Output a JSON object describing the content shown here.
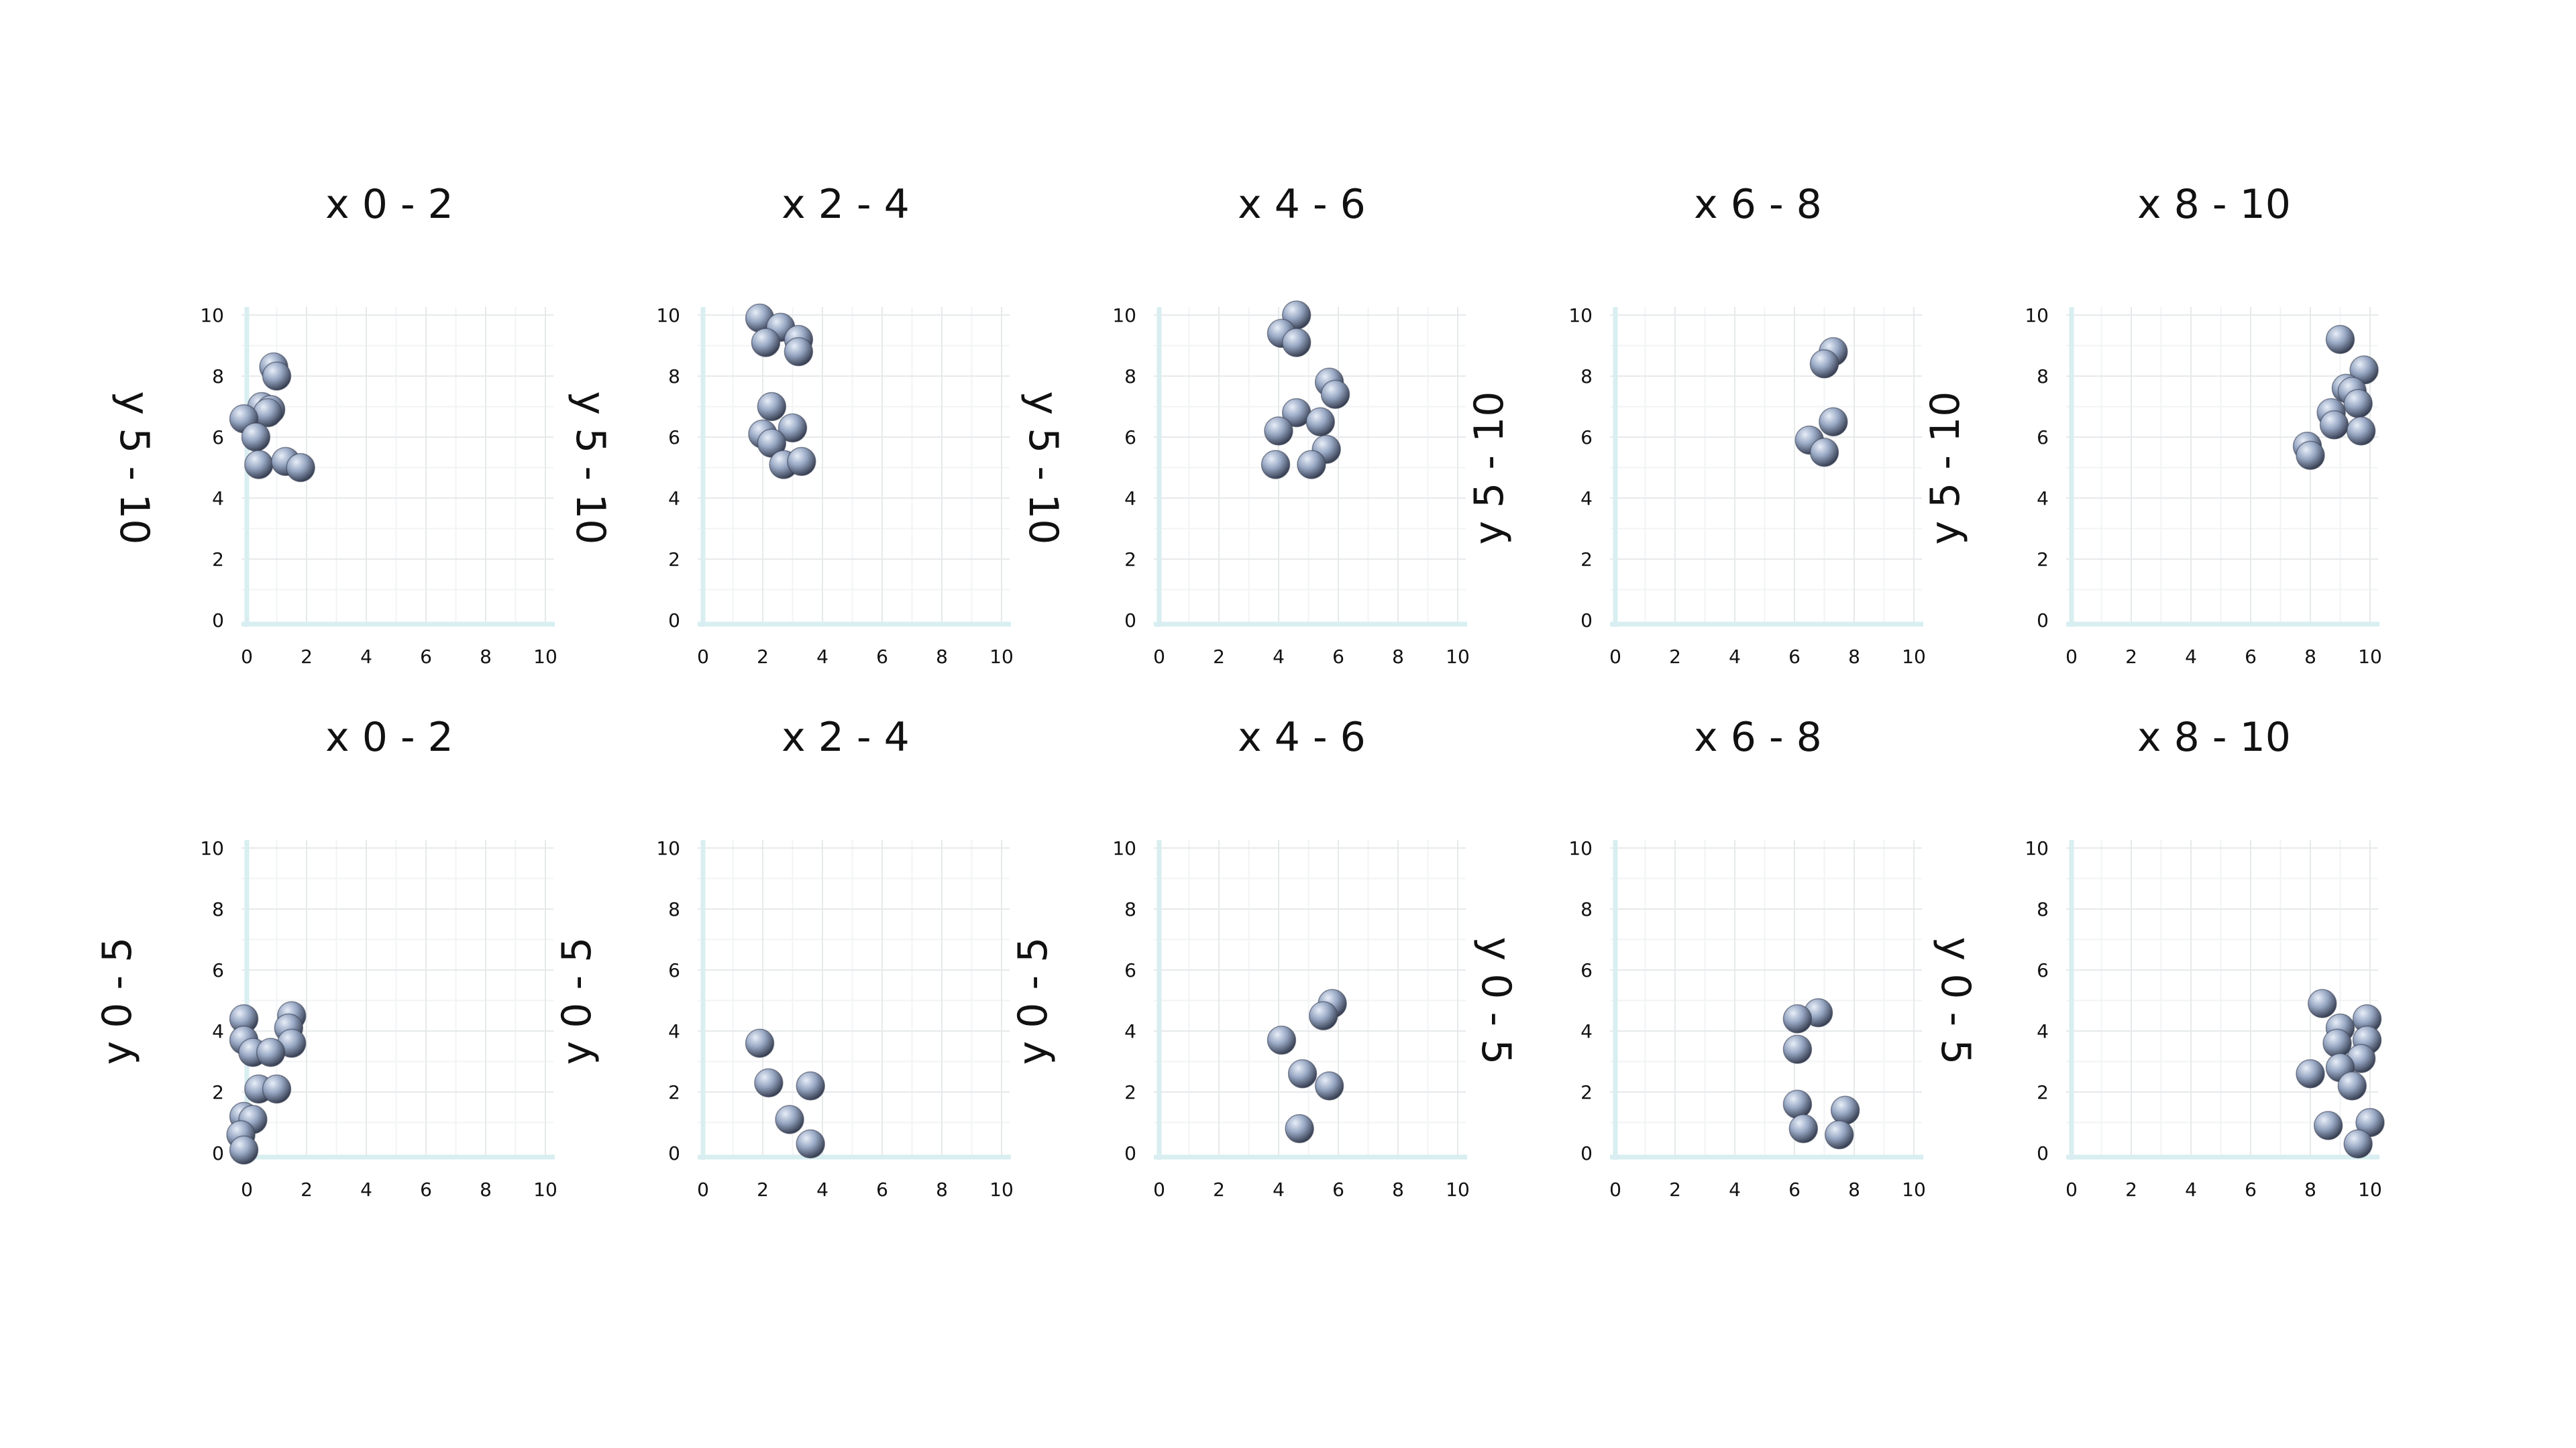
{
  "chart_data": [
    {
      "type": "scatter",
      "title": "x 0 - 2",
      "ylabel": "y 5 - 10",
      "xlim": [
        0,
        10
      ],
      "ylim": [
        0,
        10
      ],
      "xticks": [
        "0",
        "2",
        "4",
        "6",
        "8",
        "10"
      ],
      "yticks": [
        "0",
        "2",
        "4",
        "6",
        "8",
        "10"
      ],
      "points": [
        [
          0.9,
          8.3
        ],
        [
          1.0,
          8.0
        ],
        [
          0.5,
          7.0
        ],
        [
          0.8,
          6.9
        ],
        [
          0.7,
          6.8
        ],
        [
          -0.1,
          6.6
        ],
        [
          0.3,
          6.0
        ],
        [
          0.4,
          5.1
        ],
        [
          1.3,
          5.2
        ],
        [
          1.8,
          5.0
        ]
      ]
    },
    {
      "type": "scatter",
      "title": "x 2 - 4",
      "ylabel": "y 5 - 10",
      "xlim": [
        0,
        10
      ],
      "ylim": [
        0,
        10
      ],
      "xticks": [
        "0",
        "2",
        "4",
        "6",
        "8",
        "10"
      ],
      "yticks": [
        "0",
        "2",
        "4",
        "6",
        "8",
        "10"
      ],
      "points": [
        [
          1.9,
          9.9
        ],
        [
          2.6,
          9.6
        ],
        [
          3.2,
          9.2
        ],
        [
          2.1,
          9.1
        ],
        [
          3.2,
          8.8
        ],
        [
          2.3,
          7.0
        ],
        [
          3.0,
          6.3
        ],
        [
          2.0,
          6.1
        ],
        [
          2.3,
          5.8
        ],
        [
          2.7,
          5.1
        ],
        [
          3.3,
          5.2
        ]
      ]
    },
    {
      "type": "scatter",
      "title": "x 4 - 6",
      "ylabel": "y 5 - 10",
      "xlim": [
        0,
        10
      ],
      "ylim": [
        0,
        10
      ],
      "xticks": [
        "0",
        "2",
        "4",
        "6",
        "8",
        "10"
      ],
      "yticks": [
        "0",
        "2",
        "4",
        "6",
        "8",
        "10"
      ],
      "points": [
        [
          4.6,
          10.0
        ],
        [
          4.1,
          9.4
        ],
        [
          4.6,
          9.1
        ],
        [
          5.7,
          7.8
        ],
        [
          5.9,
          7.4
        ],
        [
          4.6,
          6.8
        ],
        [
          5.4,
          6.5
        ],
        [
          4.0,
          6.2
        ],
        [
          5.6,
          5.6
        ],
        [
          3.9,
          5.1
        ],
        [
          5.1,
          5.1
        ]
      ]
    },
    {
      "type": "scatter",
      "title": "x 6 - 8",
      "ylabel": "y 5 - 10",
      "xlim": [
        0,
        10
      ],
      "ylim": [
        0,
        10
      ],
      "xticks": [
        "0",
        "2",
        "4",
        "6",
        "8",
        "10"
      ],
      "yticks": [
        "0",
        "2",
        "4",
        "6",
        "8",
        "10"
      ],
      "points": [
        [
          7.3,
          8.8
        ],
        [
          7.0,
          8.4
        ],
        [
          7.3,
          6.5
        ],
        [
          6.5,
          5.9
        ],
        [
          7.0,
          5.5
        ]
      ]
    },
    {
      "type": "scatter",
      "title": "x 8 - 10",
      "ylabel": "y 5 - 10",
      "xlim": [
        0,
        10
      ],
      "ylim": [
        0,
        10
      ],
      "xticks": [
        "0",
        "2",
        "4",
        "6",
        "8",
        "10"
      ],
      "yticks": [
        "0",
        "2",
        "4",
        "6",
        "8",
        "10"
      ],
      "points": [
        [
          9.0,
          9.2
        ],
        [
          9.8,
          8.2
        ],
        [
          9.2,
          7.6
        ],
        [
          9.4,
          7.5
        ],
        [
          9.6,
          7.1
        ],
        [
          8.7,
          6.8
        ],
        [
          8.8,
          6.4
        ],
        [
          9.7,
          6.2
        ],
        [
          7.9,
          5.7
        ],
        [
          8.0,
          5.4
        ]
      ]
    },
    {
      "type": "scatter",
      "title": "x 0 - 2",
      "ylabel": "y 0 - 5",
      "xlim": [
        0,
        10
      ],
      "ylim": [
        0,
        10
      ],
      "xticks": [
        "0",
        "2",
        "4",
        "6",
        "8",
        "10"
      ],
      "yticks": [
        "0",
        "2",
        "4",
        "6",
        "8",
        "10"
      ],
      "points": [
        [
          1.5,
          4.5
        ],
        [
          -0.1,
          4.4
        ],
        [
          1.4,
          4.1
        ],
        [
          -0.1,
          3.7
        ],
        [
          1.5,
          3.6
        ],
        [
          0.2,
          3.3
        ],
        [
          0.8,
          3.3
        ],
        [
          0.4,
          2.1
        ],
        [
          1.0,
          2.1
        ],
        [
          -0.1,
          1.2
        ],
        [
          0.2,
          1.1
        ],
        [
          -0.2,
          0.6
        ],
        [
          -0.1,
          0.1
        ]
      ]
    },
    {
      "type": "scatter",
      "title": "x 2 - 4",
      "ylabel": "y 0 - 5",
      "xlim": [
        0,
        10
      ],
      "ylim": [
        0,
        10
      ],
      "xticks": [
        "0",
        "2",
        "4",
        "6",
        "8",
        "10"
      ],
      "yticks": [
        "0",
        "2",
        "4",
        "6",
        "8",
        "10"
      ],
      "points": [
        [
          1.9,
          3.6
        ],
        [
          3.6,
          2.2
        ],
        [
          2.2,
          2.3
        ],
        [
          2.9,
          1.1
        ],
        [
          3.6,
          0.3
        ]
      ]
    },
    {
      "type": "scatter",
      "title": "x 4 - 6",
      "ylabel": "y 0 - 5",
      "xlim": [
        0,
        10
      ],
      "ylim": [
        0,
        10
      ],
      "xticks": [
        "0",
        "2",
        "4",
        "6",
        "8",
        "10"
      ],
      "yticks": [
        "0",
        "2",
        "4",
        "6",
        "8",
        "10"
      ],
      "points": [
        [
          5.8,
          4.9
        ],
        [
          5.5,
          4.5
        ],
        [
          4.1,
          3.7
        ],
        [
          4.8,
          2.6
        ],
        [
          5.7,
          2.2
        ],
        [
          4.7,
          0.8
        ]
      ]
    },
    {
      "type": "scatter",
      "title": "x 6 - 8",
      "ylabel": "y 0 - 5",
      "xlim": [
        0,
        10
      ],
      "ylim": [
        0,
        10
      ],
      "xticks": [
        "0",
        "2",
        "4",
        "6",
        "8",
        "10"
      ],
      "yticks": [
        "0",
        "2",
        "4",
        "6",
        "8",
        "10"
      ],
      "points": [
        [
          6.8,
          4.6
        ],
        [
          6.1,
          4.4
        ],
        [
          6.1,
          3.4
        ],
        [
          6.1,
          1.6
        ],
        [
          7.7,
          1.4
        ],
        [
          6.3,
          0.8
        ],
        [
          7.5,
          0.6
        ]
      ]
    },
    {
      "type": "scatter",
      "title": "x 8 - 10",
      "ylabel": "y 0 - 5",
      "xlim": [
        0,
        10
      ],
      "ylim": [
        0,
        10
      ],
      "xticks": [
        "0",
        "2",
        "4",
        "6",
        "8",
        "10"
      ],
      "yticks": [
        "0",
        "2",
        "4",
        "6",
        "8",
        "10"
      ],
      "points": [
        [
          8.4,
          4.9
        ],
        [
          9.0,
          4.1
        ],
        [
          9.9,
          4.4
        ],
        [
          8.9,
          3.6
        ],
        [
          9.9,
          3.7
        ],
        [
          9.7,
          3.1
        ],
        [
          9.0,
          2.8
        ],
        [
          8.0,
          2.6
        ],
        [
          9.4,
          2.2
        ],
        [
          8.6,
          0.9
        ],
        [
          10.0,
          1.0
        ],
        [
          9.6,
          0.3
        ]
      ]
    }
  ],
  "colors": {
    "point": "#98a8c4",
    "point_edge": "#5b6a86",
    "grid": "#e6e9ea",
    "axis": "#d8eef0"
  }
}
